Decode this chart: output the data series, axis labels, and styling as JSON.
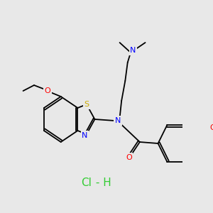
{
  "background_color": "#e8e8e8",
  "hcl_text": "Cl - H",
  "hcl_color": "#33cc33",
  "hcl_fontsize": 11,
  "atom_colors": {
    "N": "#0000ff",
    "O": "#ff0000",
    "S": "#ccaa00",
    "C": "#000000",
    "Cl": "#33cc33"
  },
  "lw": 1.3
}
